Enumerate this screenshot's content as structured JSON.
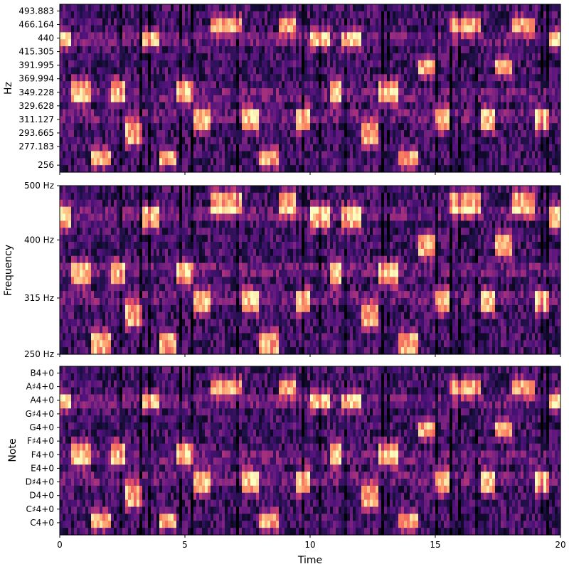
{
  "chart_data": [
    {
      "type": "heatmap",
      "colormap": "magma",
      "xlabel": "",
      "ylabel": "Hz",
      "xlim": [
        0,
        20
      ],
      "x_ticks": [
        0,
        5,
        10,
        15,
        20
      ],
      "x_tick_labels_shown": false,
      "y_ticks": [
        {
          "label": "256",
          "hz": 256
        },
        {
          "label": "277.183",
          "hz": 277.183
        },
        {
          "label": "293.665",
          "hz": 293.665
        },
        {
          "label": "311.127",
          "hz": 311.127
        },
        {
          "label": "329.628",
          "hz": 329.628
        },
        {
          "label": "349.228",
          "hz": 349.228
        },
        {
          "label": "369.994",
          "hz": 369.994
        },
        {
          "label": "391.995",
          "hz": 391.995
        },
        {
          "label": "415.305",
          "hz": 415.305
        },
        {
          "label": "440",
          "hz": 440
        },
        {
          "label": "466.164",
          "hz": 466.164
        },
        {
          "label": "493.883",
          "hz": 493.883
        }
      ]
    },
    {
      "type": "heatmap",
      "colormap": "magma",
      "xlabel": "",
      "ylabel": "Frequency",
      "xlim": [
        0,
        20
      ],
      "x_ticks": [
        0,
        5,
        10,
        15,
        20
      ],
      "x_tick_labels_shown": false,
      "y_ticks": [
        {
          "label": "250 Hz",
          "hz": 250
        },
        {
          "label": "315 Hz",
          "hz": 315
        },
        {
          "label": "400 Hz",
          "hz": 400
        },
        {
          "label": "500 Hz",
          "hz": 500
        }
      ]
    },
    {
      "type": "heatmap",
      "colormap": "magma",
      "xlabel": "Time",
      "ylabel": "Note",
      "xlim": [
        0,
        20
      ],
      "x_ticks": [
        0,
        5,
        10,
        15,
        20
      ],
      "x_tick_labels": [
        "0",
        "5",
        "10",
        "15",
        "20"
      ],
      "x_tick_labels_shown": true,
      "y_ticks": [
        {
          "label": "C4+0",
          "hz": 261.63
        },
        {
          "label": "C♯4+0",
          "hz": 277.18
        },
        {
          "label": "D4+0",
          "hz": 293.66
        },
        {
          "label": "D♯4+0",
          "hz": 311.13
        },
        {
          "label": "E4+0",
          "hz": 329.63
        },
        {
          "label": "F4+0",
          "hz": 349.23
        },
        {
          "label": "F♯4+0",
          "hz": 369.99
        },
        {
          "label": "G4+0",
          "hz": 392.0
        },
        {
          "label": "G♯4+0",
          "hz": 415.3
        },
        {
          "label": "A4+0",
          "hz": 440.0
        },
        {
          "label": "A♯4+0",
          "hz": 466.16
        },
        {
          "label": "B4+0",
          "hz": 493.88
        }
      ]
    }
  ],
  "melody": {
    "notes_hz": [
      [
        0.0,
        0.5,
        440.0
      ],
      [
        0.5,
        1.2,
        349.23
      ],
      [
        1.2,
        2.1,
        261.63
      ],
      [
        2.1,
        2.6,
        349.23
      ],
      [
        2.6,
        3.3,
        293.66
      ],
      [
        3.3,
        4.0,
        440.0
      ],
      [
        4.0,
        4.7,
        261.63
      ],
      [
        4.7,
        5.3,
        349.23
      ],
      [
        5.3,
        6.0,
        311.13
      ],
      [
        6.0,
        7.3,
        466.16
      ],
      [
        7.3,
        8.0,
        311.13
      ],
      [
        8.0,
        8.7,
        261.63
      ],
      [
        8.7,
        9.4,
        466.16
      ],
      [
        9.4,
        10.0,
        311.13
      ],
      [
        10.0,
        10.8,
        440.0
      ],
      [
        10.8,
        11.3,
        349.23
      ],
      [
        11.3,
        12.1,
        440.0
      ],
      [
        12.1,
        12.7,
        293.66
      ],
      [
        12.7,
        13.5,
        349.23
      ],
      [
        13.5,
        14.3,
        261.63
      ],
      [
        14.3,
        15.0,
        391.99
      ],
      [
        15.0,
        15.6,
        311.13
      ],
      [
        15.6,
        16.8,
        466.16
      ],
      [
        16.8,
        17.4,
        311.13
      ],
      [
        17.4,
        18.1,
        391.99
      ],
      [
        18.1,
        19.0,
        466.16
      ],
      [
        19.0,
        19.6,
        311.13
      ],
      [
        19.6,
        20.0,
        440.0
      ]
    ]
  }
}
